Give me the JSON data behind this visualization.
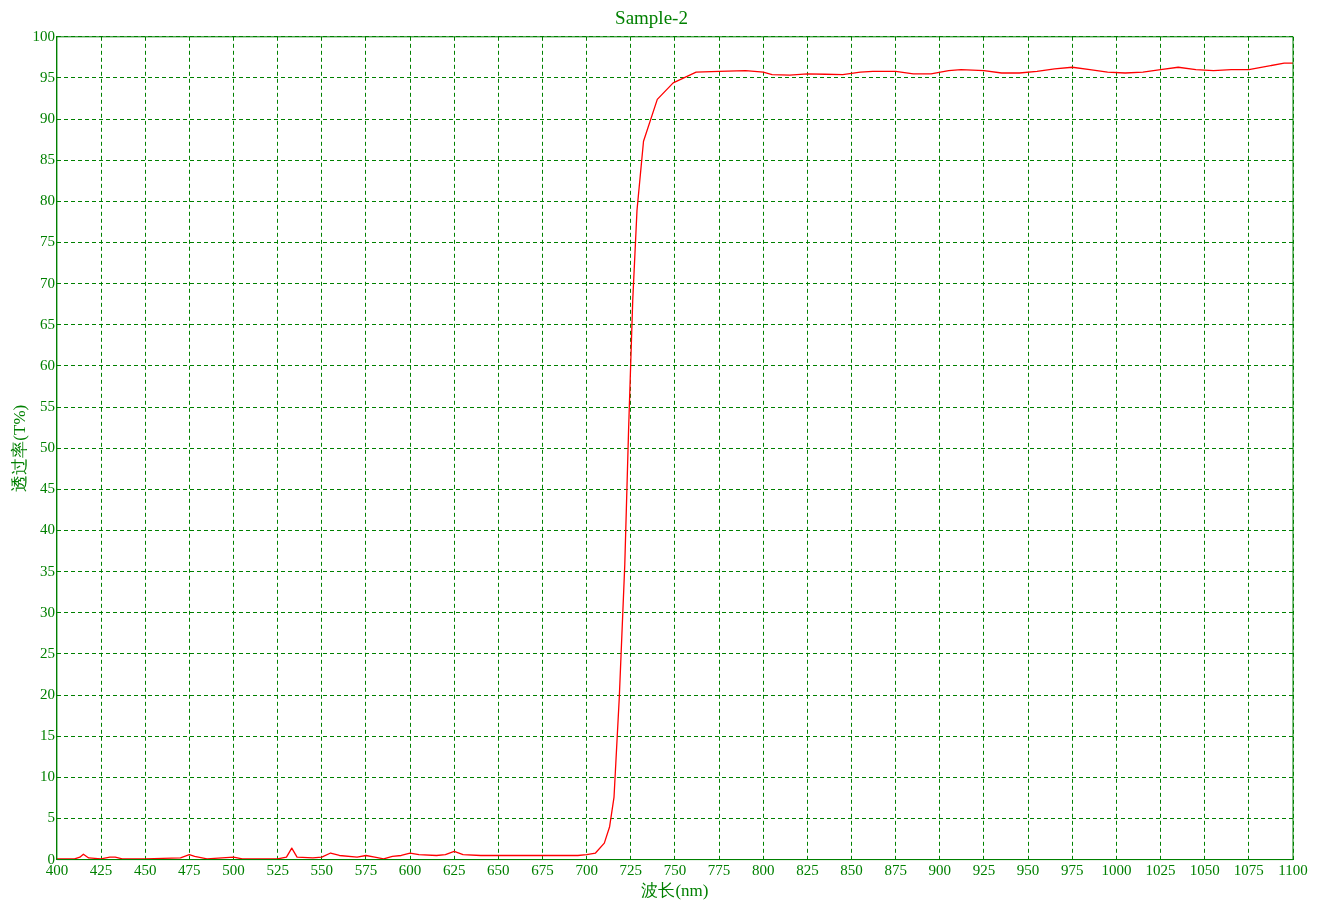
{
  "chart_data": {
    "type": "line",
    "title": "Sample-2",
    "xlabel": "波长(nm)",
    "ylabel": "透过率(T%)",
    "x": [
      400,
      410,
      413,
      415,
      418,
      425,
      430,
      433,
      437,
      450,
      470,
      475,
      478,
      485,
      500,
      505,
      525,
      530,
      533,
      536,
      545,
      550,
      555,
      560,
      570,
      575,
      580,
      585,
      590,
      595,
      600,
      605,
      615,
      620,
      625,
      630,
      640,
      660,
      680,
      695,
      700,
      705,
      710,
      713,
      715.5,
      718.5,
      721.6,
      723.7,
      726.1,
      728.5,
      732.2,
      740,
      749,
      762,
      775,
      790,
      800,
      805,
      815,
      825,
      835,
      845,
      855,
      862,
      875,
      885,
      895,
      905,
      912,
      925,
      935,
      945,
      955,
      965,
      975,
      985,
      995,
      1005,
      1015,
      1025,
      1035,
      1045,
      1055,
      1065,
      1075,
      1085,
      1095,
      1100
    ],
    "series": [
      {
        "color": "#ff0000",
        "values": [
          0.1,
          0.1,
          0.3,
          0.65,
          0.2,
          0.1,
          0.3,
          0.3,
          0.1,
          0.1,
          0.2,
          0.6,
          0.4,
          0.1,
          0.3,
          0.1,
          0.1,
          0.3,
          1.4,
          0.3,
          0.2,
          0.3,
          0.8,
          0.5,
          0.3,
          0.5,
          0.3,
          0.1,
          0.4,
          0.5,
          0.8,
          0.6,
          0.5,
          0.6,
          1.0,
          0.6,
          0.5,
          0.5,
          0.5,
          0.5,
          0.6,
          0.8,
          2.0,
          4.0,
          7.6,
          19.8,
          35.9,
          51.9,
          68.0,
          78.9,
          87.3,
          92.4,
          94.4,
          95.7,
          95.8,
          95.9,
          95.7,
          95.4,
          95.35,
          95.5,
          95.45,
          95.4,
          95.7,
          95.8,
          95.8,
          95.5,
          95.5,
          95.9,
          96.0,
          95.9,
          95.6,
          95.6,
          95.8,
          96.1,
          96.3,
          96.0,
          95.7,
          95.6,
          95.7,
          96.0,
          96.3,
          96.0,
          95.9,
          96.0,
          96.0,
          96.4,
          96.8,
          96.8
        ]
      }
    ],
    "xlim": [
      400,
      1100
    ],
    "ylim": [
      0,
      100
    ],
    "xticks": [
      400,
      425,
      450,
      475,
      500,
      525,
      550,
      575,
      600,
      625,
      650,
      675,
      700,
      725,
      750,
      775,
      800,
      825,
      850,
      875,
      900,
      925,
      950,
      975,
      1000,
      1025,
      1050,
      1075,
      1100
    ],
    "yticks": [
      0,
      5,
      10,
      15,
      20,
      25,
      30,
      35,
      40,
      45,
      50,
      55,
      60,
      65,
      70,
      75,
      80,
      85,
      90,
      95,
      100
    ],
    "grid": true,
    "legend": false
  }
}
